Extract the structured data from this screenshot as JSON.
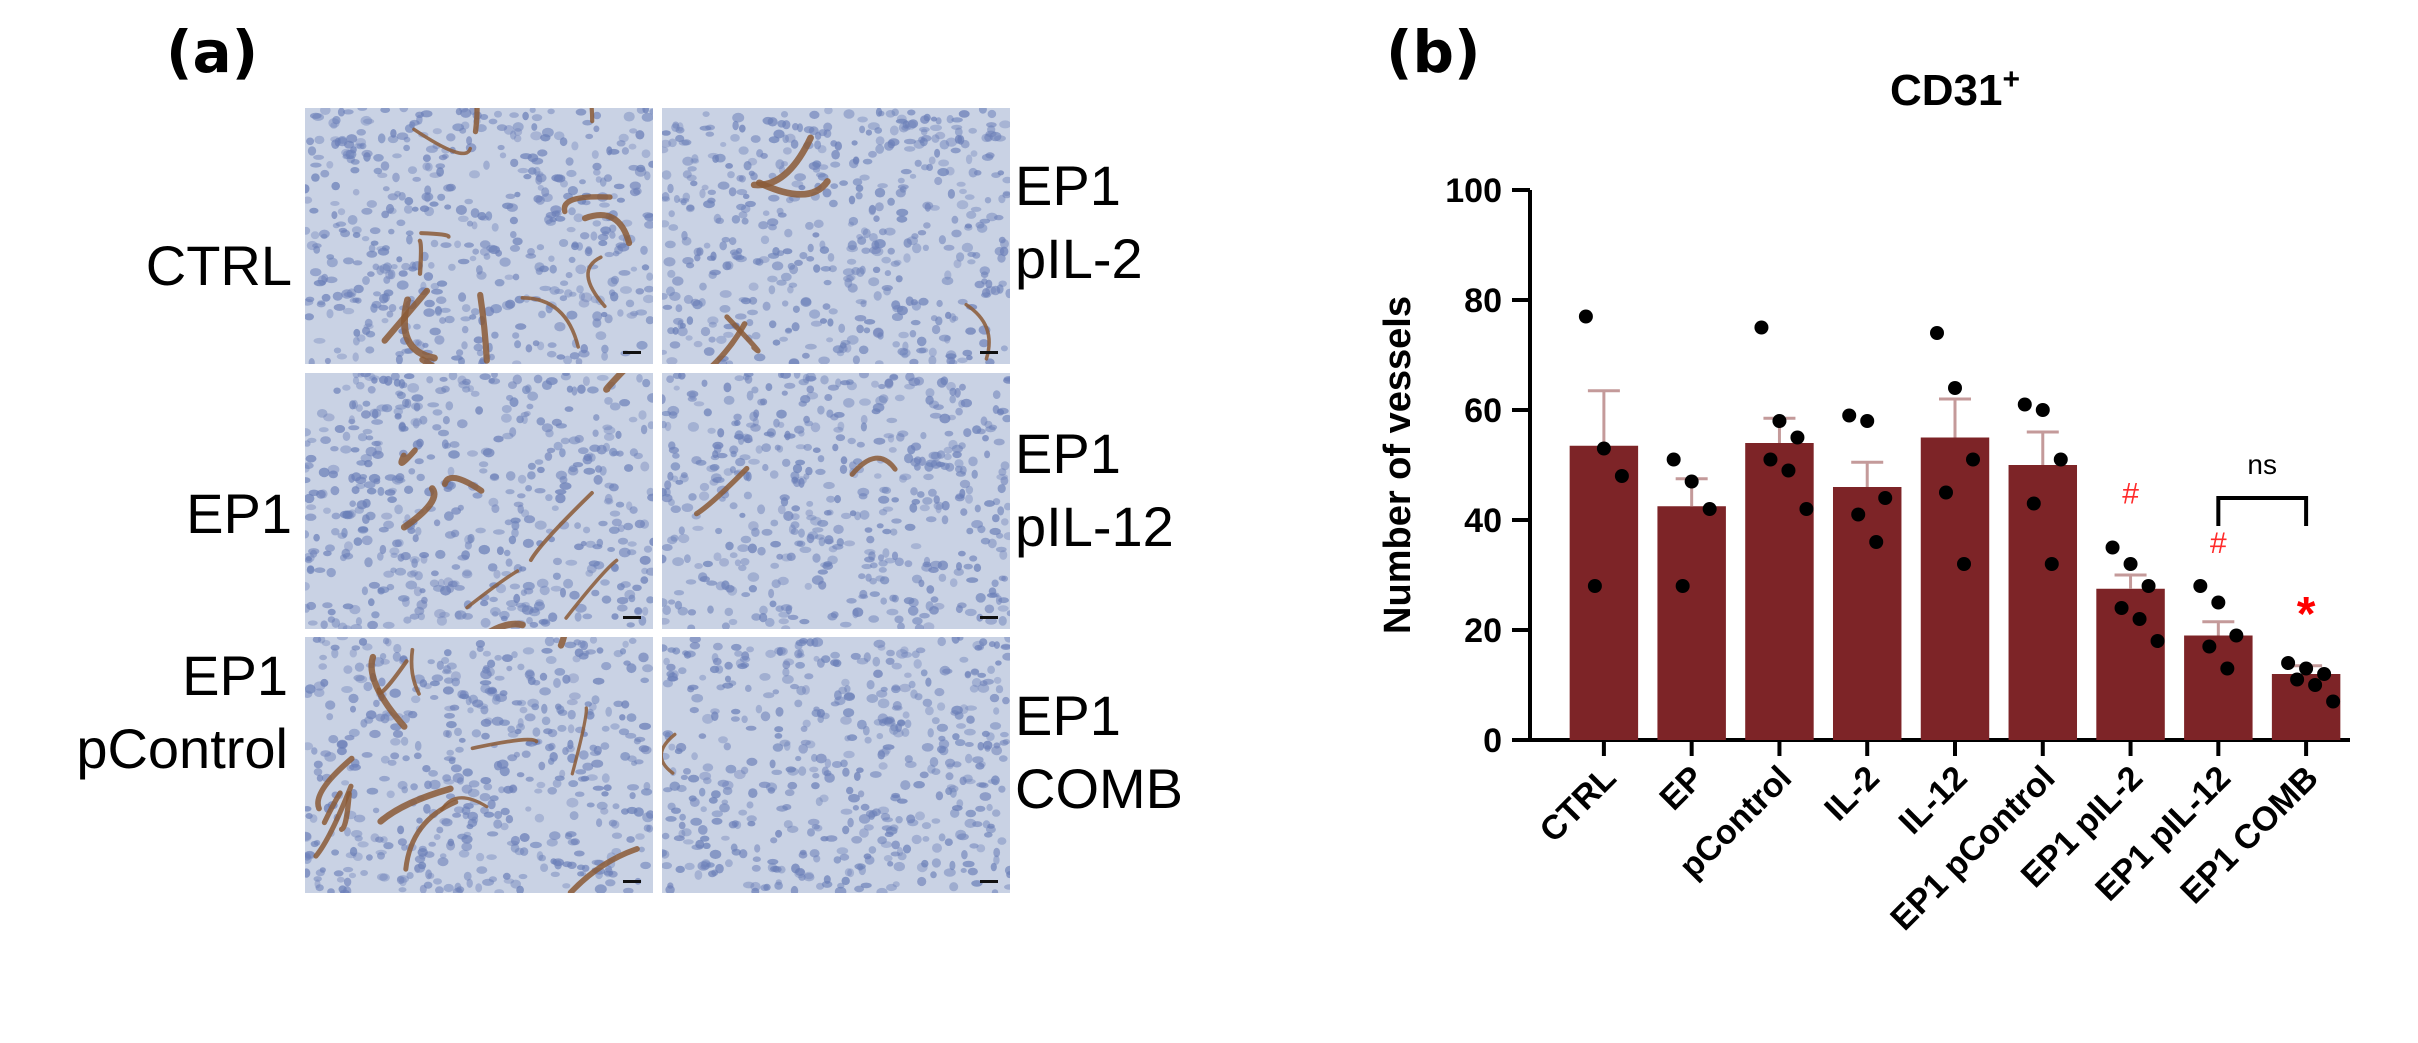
{
  "panel_a": {
    "label": "(a)",
    "tiles": [
      {
        "label_lines": [
          "CTRL"
        ],
        "side": "left",
        "vessel_density": 0.9
      },
      {
        "label_lines": [
          "EP1",
          "pIL-2"
        ],
        "side": "right",
        "vessel_density": 0.35
      },
      {
        "label_lines": [
          "EP1"
        ],
        "side": "left",
        "vessel_density": 0.6
      },
      {
        "label_lines": [
          "EP1",
          "pIL-12"
        ],
        "side": "right",
        "vessel_density": 0.15
      },
      {
        "label_lines": [
          "EP1",
          "pControl"
        ],
        "side": "left",
        "vessel_density": 1.0
      },
      {
        "label_lines": [
          "EP1",
          "COMB"
        ],
        "side": "right",
        "vessel_density": 0.05
      }
    ],
    "colors": {
      "tissue": "#c9d2e4",
      "nuclei": "#6b7fb8",
      "vessel": "#8b5a36"
    }
  },
  "panel_b": {
    "label": "(b)"
  },
  "chart_data": {
    "type": "bar",
    "title": "CD31",
    "title_superscript": "+",
    "ylabel": "Number of vessels",
    "xlabel": "",
    "ylim": [
      0,
      100
    ],
    "yticks": [
      0,
      20,
      40,
      60,
      80,
      100
    ],
    "categories": [
      "CTRL",
      "EP",
      "pControl",
      "IL-2",
      "IL-12",
      "EP1 pControl",
      "EP1 pIL-2",
      "EP1 pIL-12",
      "EP1 COMB"
    ],
    "values": [
      53.5,
      42.5,
      54,
      46,
      55,
      50,
      27.5,
      19,
      12
    ],
    "errors": [
      10,
      5,
      4.5,
      4.5,
      7,
      6,
      2.5,
      2.5,
      1.5
    ],
    "points": [
      [
        77,
        53,
        48,
        28
      ],
      [
        51,
        47,
        42,
        28
      ],
      [
        75,
        58,
        55,
        51,
        49,
        42
      ],
      [
        59,
        58,
        44,
        41,
        36
      ],
      [
        74,
        64,
        51,
        45,
        32
      ],
      [
        61,
        60,
        51,
        43,
        32
      ],
      [
        35,
        32,
        28,
        24,
        22,
        18
      ],
      [
        28,
        25,
        19,
        17,
        13
      ],
      [
        14,
        13,
        12,
        11,
        10,
        7
      ]
    ],
    "bar_color": "#7d2427",
    "error_color": "#c49a9a",
    "annotations": [
      {
        "category": "EP1 pIL-2",
        "text": "#",
        "y": 43,
        "color": "#ff2a2a"
      },
      {
        "category": "EP1 pIL-12",
        "text": "#",
        "y": 34,
        "color": "#ff2a2a"
      },
      {
        "category": "EP1 COMB",
        "text": "*",
        "y": 20,
        "color": "#ff0000"
      }
    ],
    "bracket": {
      "from": "EP1 pIL-12",
      "to": "EP1 COMB",
      "text": "ns",
      "y": 44
    }
  }
}
